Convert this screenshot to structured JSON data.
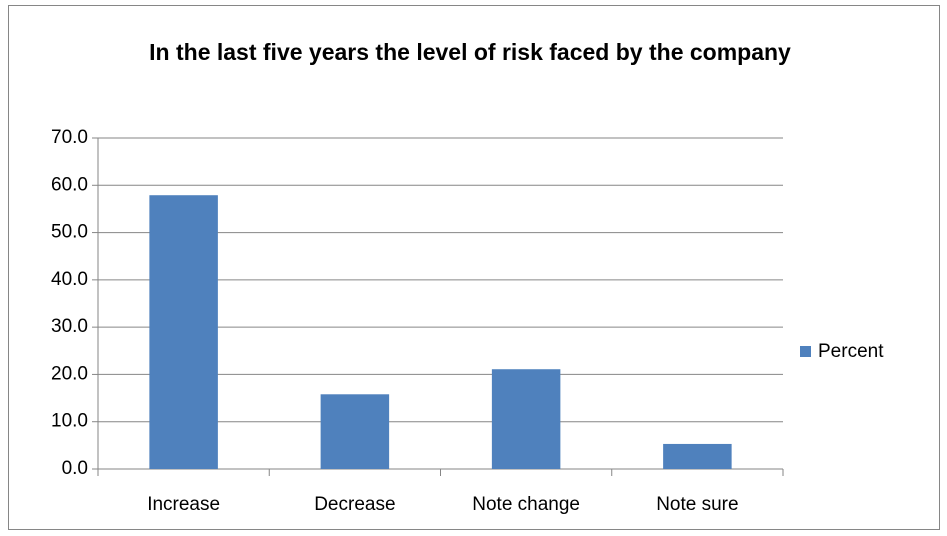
{
  "chart_data": {
    "type": "bar",
    "title": "In the last five years the level of risk faced by the company",
    "categories": [
      "Increase",
      "Decrease",
      "Note change",
      "Note sure"
    ],
    "series": [
      {
        "name": "Percent",
        "color": "#4f81bd",
        "values": [
          57.9,
          15.8,
          21.1,
          5.3
        ]
      }
    ],
    "ylim": [
      0,
      70
    ],
    "yticks": [
      {
        "value": 0,
        "label": "0.0"
      },
      {
        "value": 10,
        "label": "10.0"
      },
      {
        "value": 20,
        "label": "20.0"
      },
      {
        "value": 30,
        "label": "30.0"
      },
      {
        "value": 40,
        "label": "40.0"
      },
      {
        "value": 50,
        "label": "50.0"
      },
      {
        "value": 60,
        "label": "60.0"
      },
      {
        "value": 70,
        "label": "70.0"
      }
    ],
    "grid": true,
    "legend": "right"
  }
}
